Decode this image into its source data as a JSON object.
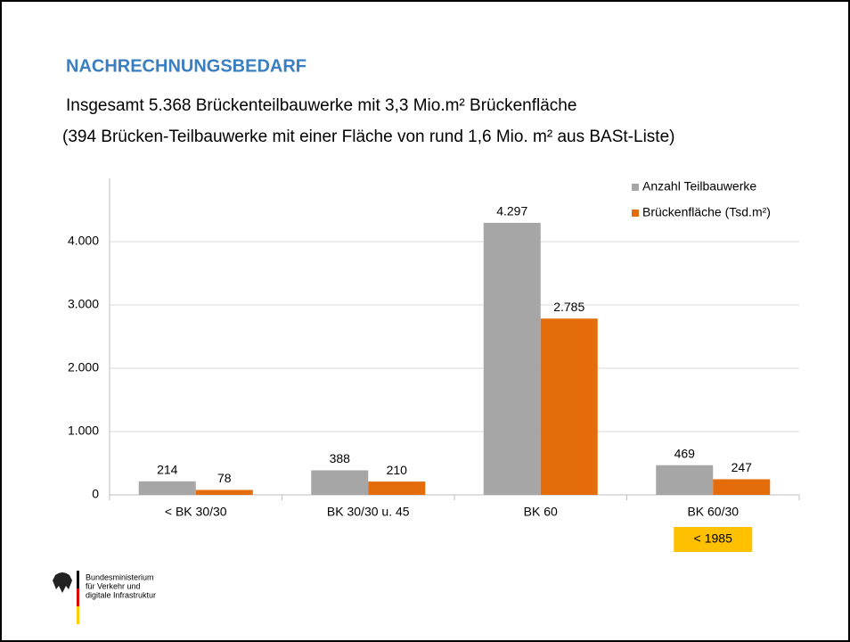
{
  "chart_data": {
    "type": "bar",
    "title": "NACHRECHNUNGSBEDARF",
    "subtitle": [
      "Insgesamt 5.368 Brückenteilbauwerke mit 3,3 Mio.m² Brückenfläche",
      "(394 Brücken-Teilbauwerke mit einer Fläche von rund 1,6 Mio. m² aus BASt-Liste)"
    ],
    "categories": [
      "< BK 30/30",
      "BK 30/30 u. 45",
      "BK 60",
      "BK 60/30"
    ],
    "series": [
      {
        "name": "Anzahl Teilbauwerke",
        "color": "#a6a6a6",
        "values": [
          214,
          388,
          4297,
          469
        ],
        "value_labels": [
          "214",
          "388",
          "4.297",
          "469"
        ]
      },
      {
        "name": "Brückenfläche (Tsd.m²)",
        "color": "#e46c0a",
        "values": [
          78,
          210,
          2785,
          247
        ],
        "value_labels": [
          "78",
          "210",
          "2.785",
          "247"
        ]
      }
    ],
    "ylim": [
      0,
      5000
    ],
    "yticks": [
      0,
      {
        "value": 1000,
        "label": "1.000"
      },
      {
        "value": 2000,
        "label": "2.000"
      },
      {
        "value": 3000,
        "label": "3.000"
      },
      {
        "value": 4000,
        "label": "4.000"
      }
    ],
    "grid": true,
    "legend": "top-right",
    "annotation": "< 1985",
    "logo": [
      "Bundesministerium",
      "für Verkehr und",
      "digitale Infrastruktur"
    ]
  }
}
